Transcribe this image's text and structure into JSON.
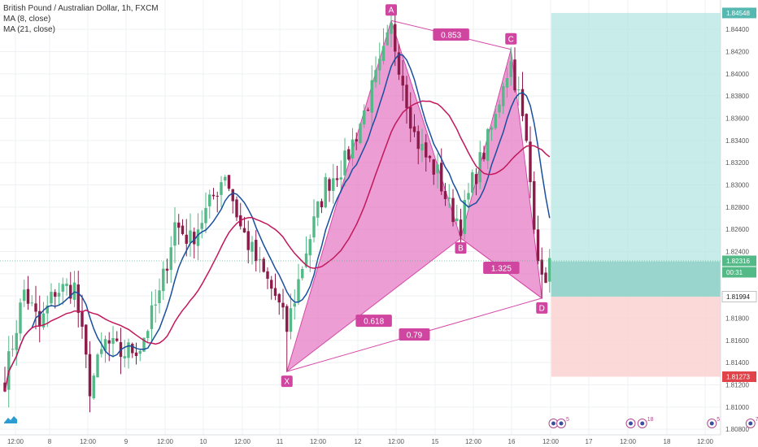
{
  "legend": {
    "title": "British Pound / Australian Dollar, 1h, FXCM",
    "ma_fast": "MA (8, close)",
    "ma_slow": "MA (21, close)"
  },
  "colors": {
    "bull": "#53b987",
    "bear": "#8c1b4a",
    "ma_fast": "#1a4e9e",
    "ma_slow": "#c2185b",
    "pattern_fill": "#e57cc4",
    "pattern_stroke": "#d44aa8",
    "target_zone": "#b5e5e2",
    "stop_zone": "#fbd0cf",
    "entry_box": "#8fd0c6",
    "grid": "#eef0f3"
  },
  "chart_data": {
    "type": "candlestick",
    "symbol": "British Pound / Australian Dollar",
    "interval": "1h",
    "ylim": [
      1.8075,
      1.8465
    ],
    "y_ticks": [
      "1.84400",
      "1.84200",
      "1.84000",
      "1.83800",
      "1.83600",
      "1.83400",
      "1.83200",
      "1.83000",
      "1.82800",
      "1.82600",
      "1.82400",
      "1.82200",
      "1.82000",
      "1.81800",
      "1.81600",
      "1.81400",
      "1.81200",
      "1.81000",
      "1.80800"
    ],
    "x_ticks": [
      "12:00",
      "8",
      "12:00",
      "9",
      "12:00",
      "10",
      "12:00",
      "11",
      "12:00",
      "12",
      "12:00",
      "15",
      "12:00",
      "16",
      "12:00",
      "17",
      "12:00",
      "18",
      "12:00"
    ],
    "price_labels": [
      {
        "text": "1.84548",
        "price": 1.84548,
        "kind": "target"
      },
      {
        "text": "1.82316",
        "price": 1.82316,
        "kind": "current"
      },
      {
        "text": "00:31",
        "price": 1.8221,
        "kind": "countdown"
      },
      {
        "text": "1.81994",
        "price": 1.81994,
        "kind": "entry"
      },
      {
        "text": "1.81273",
        "price": 1.81273,
        "kind": "stop"
      }
    ],
    "harmonic_pattern": {
      "points": [
        {
          "label": "X",
          "bar": 73,
          "price": 1.8132
        },
        {
          "label": "A",
          "bar": 100,
          "price": 1.8448
        },
        {
          "label": "B",
          "bar": 118,
          "price": 1.8252
        },
        {
          "label": "C",
          "bar": 131,
          "price": 1.8422
        },
        {
          "label": "D",
          "bar": 139,
          "price": 1.8198
        }
      ],
      "ratios": [
        {
          "text": "0.853",
          "from": "A",
          "to": "C"
        },
        {
          "text": "0.618",
          "from": "X",
          "to": "B"
        },
        {
          "text": "1.325",
          "from": "B",
          "to": "D"
        },
        {
          "text": "0.79",
          "from": "X",
          "to": "D"
        }
      ]
    },
    "position": {
      "target": 1.84548,
      "entry": 1.81994,
      "stop": 1.81273,
      "start_bar": 141,
      "end_bar": 186
    },
    "anchors": [
      {
        "bar": 0,
        "price": 1.8125
      },
      {
        "bar": 5,
        "price": 1.8205
      },
      {
        "bar": 9,
        "price": 1.8172
      },
      {
        "bar": 13,
        "price": 1.8205
      },
      {
        "bar": 18,
        "price": 1.8208
      },
      {
        "bar": 22,
        "price": 1.8118
      },
      {
        "bar": 26,
        "price": 1.8158
      },
      {
        "bar": 30,
        "price": 1.8148
      },
      {
        "bar": 35,
        "price": 1.8155
      },
      {
        "bar": 40,
        "price": 1.82
      },
      {
        "bar": 44,
        "price": 1.8265
      },
      {
        "bar": 48,
        "price": 1.825
      },
      {
        "bar": 53,
        "price": 1.8282
      },
      {
        "bar": 57,
        "price": 1.8312
      },
      {
        "bar": 61,
        "price": 1.8262
      },
      {
        "bar": 66,
        "price": 1.8225
      },
      {
        "bar": 70,
        "price": 1.82
      },
      {
        "bar": 73,
        "price": 1.817
      },
      {
        "bar": 78,
        "price": 1.8242
      },
      {
        "bar": 83,
        "price": 1.83
      },
      {
        "bar": 88,
        "price": 1.832
      },
      {
        "bar": 93,
        "price": 1.8365
      },
      {
        "bar": 97,
        "price": 1.8405
      },
      {
        "bar": 100,
        "price": 1.844
      },
      {
        "bar": 103,
        "price": 1.8395
      },
      {
        "bar": 106,
        "price": 1.8345
      },
      {
        "bar": 109,
        "price": 1.8325
      },
      {
        "bar": 112,
        "price": 1.831
      },
      {
        "bar": 115,
        "price": 1.828
      },
      {
        "bar": 118,
        "price": 1.8265
      },
      {
        "bar": 121,
        "price": 1.8302
      },
      {
        "bar": 124,
        "price": 1.833
      },
      {
        "bar": 127,
        "price": 1.836
      },
      {
        "bar": 129,
        "price": 1.8395
      },
      {
        "bar": 131,
        "price": 1.841
      },
      {
        "bar": 133,
        "price": 1.838
      },
      {
        "bar": 135,
        "price": 1.8335
      },
      {
        "bar": 137,
        "price": 1.827
      },
      {
        "bar": 139,
        "price": 1.821
      },
      {
        "bar": 141,
        "price": 1.823
      }
    ],
    "ma_periods": [
      8,
      21
    ],
    "events": [
      {
        "bar": 142,
        "count": ""
      },
      {
        "bar": 144,
        "count": "5"
      },
      {
        "bar": 162,
        "count": ""
      },
      {
        "bar": 165,
        "count": "18"
      },
      {
        "bar": 183,
        "count": "5"
      },
      {
        "bar": 193,
        "count": "7"
      }
    ]
  }
}
